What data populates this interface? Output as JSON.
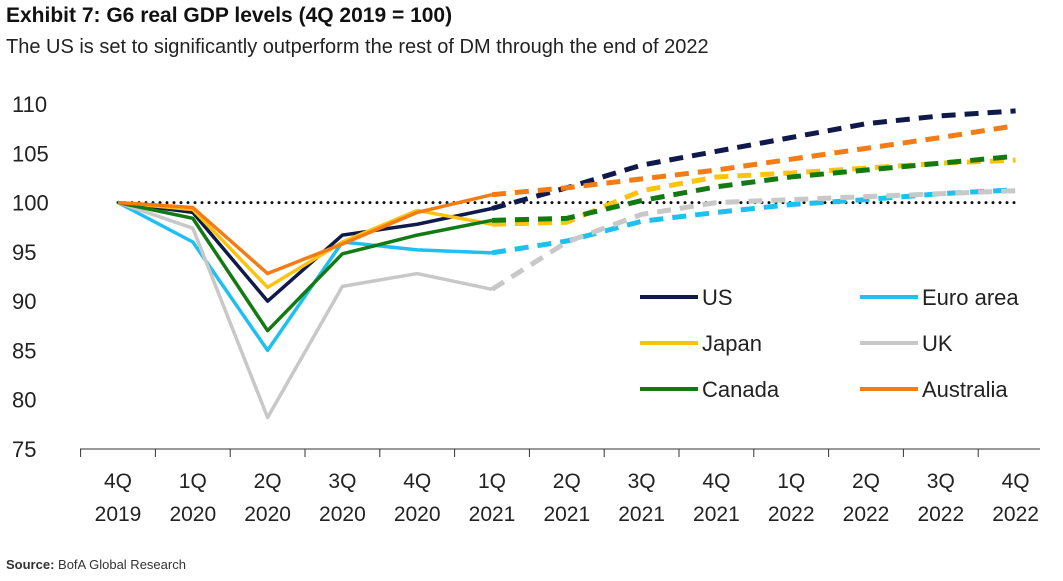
{
  "title": "Exhibit 7: G6 real GDP levels (4Q 2019 = 100)",
  "subtitle": "The US is set to significantly outperform the rest of DM through the end of 2022",
  "source_label": "Source:",
  "source_text": "BofA Global Research",
  "chart_data": {
    "type": "line",
    "title": "Exhibit 7: G6 real GDP levels (4Q 2019 = 100)",
    "xlabel": "",
    "ylabel": "",
    "ylim": [
      75,
      110
    ],
    "yticks": [
      75,
      80,
      85,
      90,
      95,
      100,
      105,
      110
    ],
    "categories": [
      [
        "4Q",
        "2019"
      ],
      [
        "1Q",
        "2020"
      ],
      [
        "2Q",
        "2020"
      ],
      [
        "3Q",
        "2020"
      ],
      [
        "4Q",
        "2020"
      ],
      [
        "1Q",
        "2021"
      ],
      [
        "2Q",
        "2021"
      ],
      [
        "3Q",
        "2021"
      ],
      [
        "4Q",
        "2021"
      ],
      [
        "1Q",
        "2022"
      ],
      [
        "2Q",
        "2022"
      ],
      [
        "3Q",
        "2022"
      ],
      [
        "4Q",
        "2022"
      ]
    ],
    "forecast_start_index": 5,
    "reference_line": 100,
    "legend_placement": "bottom-right",
    "series": [
      {
        "name": "US",
        "color": "#0f1a4a",
        "values": [
          100,
          99.0,
          90.0,
          96.7,
          97.8,
          99.4,
          101.5,
          103.8,
          105.2,
          106.6,
          108.0,
          108.8,
          109.3
        ]
      },
      {
        "name": "Euro area",
        "color": "#1ec0f0",
        "values": [
          100,
          96.0,
          85.0,
          96.0,
          95.2,
          94.9,
          96.1,
          98.1,
          99.0,
          99.8,
          100.3,
          100.9,
          101.3
        ]
      },
      {
        "name": "Japan",
        "color": "#ffc20e",
        "values": [
          100,
          99.3,
          91.4,
          96.0,
          99.2,
          97.8,
          98.0,
          101.2,
          102.6,
          103.0,
          103.5,
          104.0,
          104.3
        ]
      },
      {
        "name": "UK",
        "color": "#c8c8c8",
        "values": [
          100,
          97.4,
          78.2,
          91.5,
          92.8,
          91.2,
          96.0,
          98.8,
          100.0,
          100.3,
          100.6,
          100.9,
          101.2
        ]
      },
      {
        "name": "Canada",
        "color": "#137a13",
        "values": [
          100,
          98.4,
          87.0,
          94.8,
          96.7,
          98.2,
          98.4,
          100.2,
          101.6,
          102.6,
          103.3,
          104.0,
          104.7
        ]
      },
      {
        "name": "Australia",
        "color": "#f57c14",
        "values": [
          100,
          99.5,
          92.8,
          95.8,
          99.0,
          100.8,
          101.5,
          102.4,
          103.3,
          104.4,
          105.5,
          106.6,
          107.8
        ]
      }
    ]
  }
}
